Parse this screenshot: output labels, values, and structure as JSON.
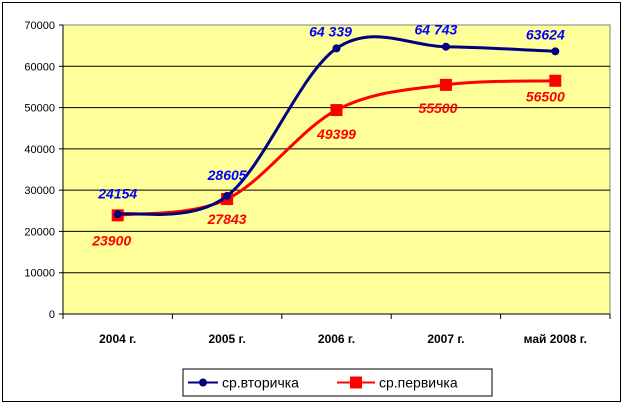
{
  "chart_data": {
    "type": "line",
    "categories": [
      "2004 г.",
      "2005 г.",
      "2006 г.",
      "2007 г.",
      "май 2008 г."
    ],
    "ylim": [
      0,
      70000
    ],
    "yticks": [
      0,
      10000,
      20000,
      30000,
      40000,
      50000,
      60000,
      70000
    ],
    "grid": true,
    "legend": "bottom",
    "plot_background": "#ffff99",
    "series": [
      {
        "name": "ср.вторичка",
        "color": "#000080",
        "label_color": "#0000ff",
        "marker": "circle",
        "values": [
          24154,
          28605,
          64339,
          64743,
          63624
        ],
        "labels": [
          "24154",
          "28605",
          "64 339",
          "64 743",
          "63624"
        ]
      },
      {
        "name": "ср.первичка",
        "color": "#ff0000",
        "label_color": "#ff0000",
        "marker": "square",
        "values": [
          23900,
          27843,
          49399,
          55500,
          56500
        ],
        "labels": [
          "23900",
          "27843",
          "49399",
          "55500",
          "56500"
        ]
      }
    ]
  }
}
